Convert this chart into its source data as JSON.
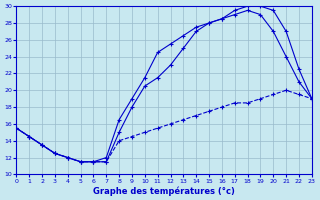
{
  "xlabel": "Graphe des températures (°c)",
  "background_color": "#c8e8f0",
  "grid_color": "#99bbcc",
  "line_color": "#0000cc",
  "xlim_min": 0,
  "xlim_max": 23,
  "ylim_min": 10,
  "ylim_max": 30,
  "xticks": [
    0,
    1,
    2,
    3,
    4,
    5,
    6,
    7,
    8,
    9,
    10,
    11,
    12,
    13,
    14,
    15,
    16,
    17,
    18,
    19,
    20,
    21,
    22,
    23
  ],
  "yticks": [
    10,
    12,
    14,
    16,
    18,
    20,
    22,
    24,
    26,
    28,
    30
  ],
  "line1_x": [
    0,
    1,
    2,
    3,
    4,
    5,
    6,
    7,
    8,
    9,
    10,
    11,
    12,
    13,
    14,
    15,
    16,
    17,
    18,
    19,
    20,
    21,
    22,
    23
  ],
  "line1_y": [
    15.5,
    14.5,
    13.5,
    12.5,
    12.0,
    11.5,
    11.5,
    12.0,
    16.5,
    19.0,
    21.5,
    24.5,
    25.5,
    26.5,
    27.5,
    28.0,
    28.5,
    29.5,
    30.0,
    30.0,
    29.5,
    27.0,
    22.5,
    19.0
  ],
  "line2_x": [
    0,
    1,
    2,
    3,
    4,
    5,
    6,
    7,
    8,
    9,
    10,
    11,
    12,
    13,
    14,
    15,
    16,
    17,
    18,
    19,
    20,
    21,
    22,
    23
  ],
  "line2_y": [
    15.5,
    14.5,
    13.5,
    12.5,
    12.0,
    11.5,
    11.5,
    11.5,
    15.0,
    18.0,
    20.5,
    21.5,
    23.0,
    25.0,
    27.0,
    28.0,
    28.5,
    29.0,
    29.5,
    29.0,
    27.0,
    24.0,
    21.0,
    19.0
  ],
  "line3_x": [
    0,
    1,
    2,
    3,
    4,
    5,
    6,
    7,
    8,
    9,
    10,
    11,
    12,
    13,
    14,
    15,
    16,
    17,
    18,
    19,
    20,
    21,
    22,
    23
  ],
  "line3_y": [
    15.5,
    14.5,
    13.5,
    12.5,
    12.0,
    11.5,
    11.5,
    11.5,
    14.0,
    14.5,
    15.0,
    15.5,
    16.0,
    16.5,
    17.0,
    17.5,
    18.0,
    18.5,
    18.5,
    19.0,
    19.5,
    20.0,
    19.5,
    19.0
  ],
  "markersize": 3.0,
  "linewidth": 0.8,
  "tick_fontsize": 4.5,
  "label_fontsize": 6,
  "figwidth": 3.2,
  "figheight": 2.0,
  "dpi": 100
}
